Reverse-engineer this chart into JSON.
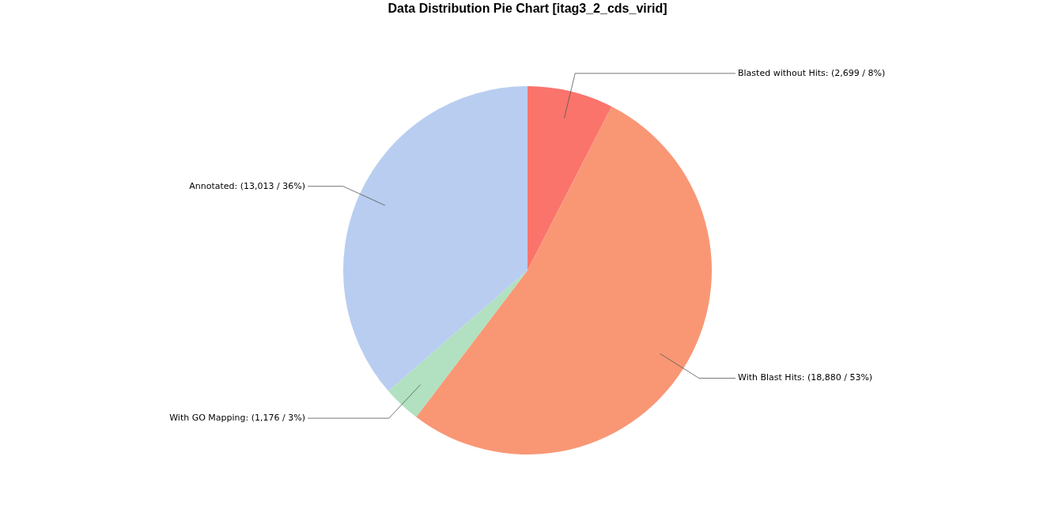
{
  "chart_data": {
    "type": "pie",
    "title": "Data Distribution Pie Chart [itag3_2_cds_virid]",
    "categories": [
      "Blasted without Hits",
      "With Blast Hits",
      "With GO Mapping",
      "Annotated"
    ],
    "values": [
      2699,
      18880,
      1176,
      13013
    ],
    "value_labels": [
      "(2,699 / 8%)",
      "(18,880 / 53%)",
      "(1,176 / 3%)",
      "(13,013 / 36%)"
    ],
    "colors": [
      "#fa746c",
      "#f99775",
      "#b1e1c0",
      "#b9cdf0"
    ],
    "legend": false
  }
}
